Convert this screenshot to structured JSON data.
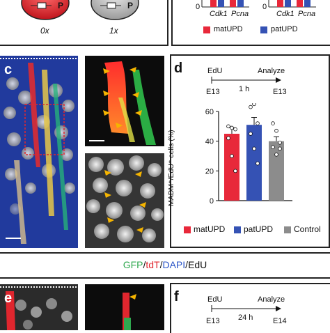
{
  "top_row": {
    "cell_left_label": "P",
    "cell_right_label": "P",
    "caption_left": "0x",
    "caption_right": "1x",
    "mini_chart_left": {
      "zero_tick": "0",
      "categories": [
        "Cdk1",
        "Pcna"
      ]
    },
    "mini_chart_right": {
      "zero_tick": "0",
      "categories": [
        "Cdk1",
        "Pcna"
      ]
    },
    "legend": {
      "mat": "matUPD",
      "pat": "patUPD"
    }
  },
  "panel_c": {
    "letter": "c"
  },
  "panel_d": {
    "letter": "d",
    "timeline": {
      "start_event": "EdU",
      "end_event": "Analyze",
      "duration": "1 h",
      "start_time": "E13",
      "end_time": "E13"
    },
    "legend": {
      "mat": "matUPD",
      "pat": "patUPD",
      "control": "Control"
    }
  },
  "staining_label": {
    "gfp": "GFP",
    "sep1": "/",
    "tdt": "tdT",
    "sep2": "/",
    "dapi": "DAPI",
    "sep3": "/",
    "edu": "EdU"
  },
  "panel_e": {
    "letter": "e"
  },
  "panel_f": {
    "letter": "f",
    "timeline": {
      "start_event": "EdU",
      "end_event": "Analyze",
      "duration": "24 h",
      "start_time": "E13",
      "end_time": "E14"
    }
  },
  "colors": {
    "matUPD": "#e8283a",
    "patUPD": "#3552b4",
    "control": "#8c8c8c",
    "gfp": "#2fa84f",
    "tdt": "#e0262e",
    "dapi": "#2b55c8"
  },
  "chart_data": {
    "type": "bar",
    "categories": [
      "matUPD",
      "patUPD",
      "Control"
    ],
    "values": [
      45,
      51,
      40
    ],
    "errors": [
      4,
      5,
      3
    ],
    "points": [
      [
        50,
        49,
        48,
        42,
        30,
        20
      ],
      [
        63,
        65,
        52,
        45,
        35,
        25
      ],
      [
        52,
        47,
        39,
        36,
        31,
        35
      ]
    ],
    "ylabel": "MADM⁺/EdU⁺ cells (%)",
    "ylim": [
      0,
      60
    ],
    "yticks": [
      0,
      20,
      40,
      60
    ],
    "grid": false
  }
}
